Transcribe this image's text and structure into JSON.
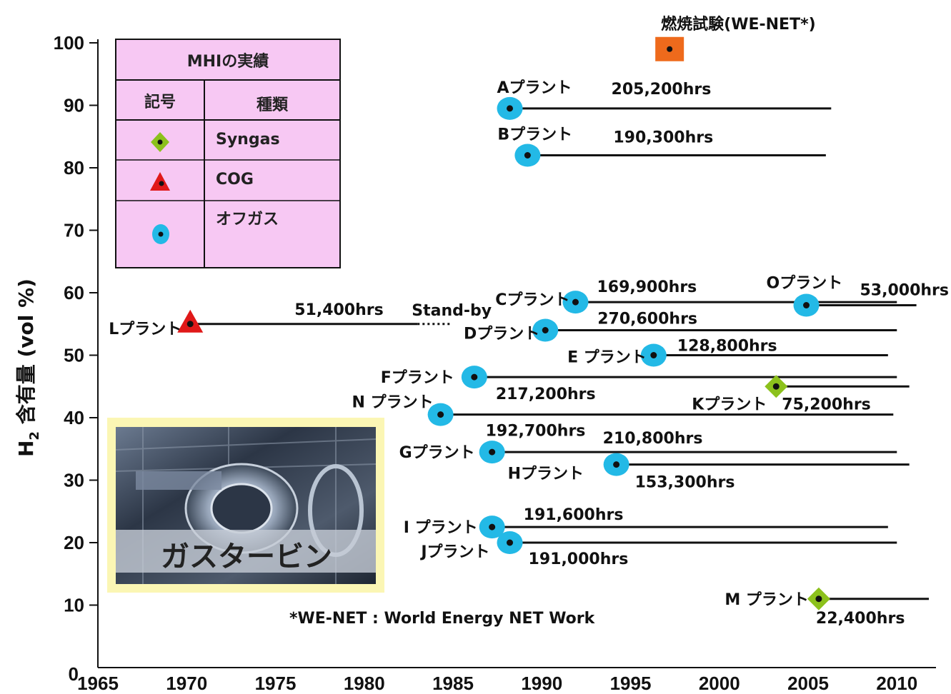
{
  "chart_data": {
    "type": "scatter",
    "ylabel_main": "H",
    "ylabel_sub": "2",
    "ylabel_rest": " 含有量 (vol %)",
    "xlim": [
      1965,
      2012
    ],
    "ylim": [
      0,
      100
    ],
    "x_ticks": [
      "1965",
      "1970",
      "1975",
      "1980",
      "1985",
      "1990",
      "1995",
      "2000",
      "2005",
      "2010"
    ],
    "y_ticks": [
      "0",
      "10",
      "20",
      "30",
      "40",
      "50",
      "60",
      "70",
      "80",
      "90",
      "100"
    ],
    "plants": [
      {
        "name": "Aプラント",
        "hours": "205,200hrs",
        "start": 1988.2,
        "end": 2006.3,
        "h2": 89.5,
        "type": "offgas"
      },
      {
        "name": "Bプラント",
        "hours": "190,300hrs",
        "start": 1989.2,
        "end": 2006.0,
        "h2": 82.0,
        "type": "offgas"
      },
      {
        "name": "Cプラント",
        "hours": "169,900hrs",
        "start": 1991.9,
        "end": 2010.0,
        "h2": 58.5,
        "type": "offgas"
      },
      {
        "name": "Oプラント",
        "hours": "53,000hrs",
        "start": 2004.9,
        "end": 2011.1,
        "h2": 58.0,
        "type": "offgas"
      },
      {
        "name": "Lプラント",
        "hours": "51,400hrs",
        "start": 1970.2,
        "end": 1983.0,
        "h2": 55.0,
        "type": "cog",
        "standby_end": 1984.9
      },
      {
        "name": "Dプラント",
        "hours": "270,600hrs",
        "start": 1990.2,
        "end": 2010.0,
        "h2": 54.0,
        "type": "offgas"
      },
      {
        "name": "E プラント",
        "hours": "128,800hrs",
        "start": 1996.3,
        "end": 2009.5,
        "h2": 50.0,
        "type": "offgas"
      },
      {
        "name": "Fプラント",
        "hours": "217,200hrs",
        "start": 1986.2,
        "end": 2010.0,
        "h2": 46.5,
        "type": "offgas"
      },
      {
        "name": "Kプラント",
        "hours": "75,200hrs",
        "start": 2003.2,
        "end": 2010.7,
        "h2": 45.0,
        "type": "syngas"
      },
      {
        "name": "N プラント",
        "hours": "192,700hrs",
        "start": 1984.3,
        "end": 2009.8,
        "h2": 40.5,
        "type": "offgas"
      },
      {
        "name": "Gプラント",
        "hours": "210,800hrs",
        "start": 1987.2,
        "end": 2010.0,
        "h2": 34.5,
        "type": "offgas"
      },
      {
        "name": "Hプラント",
        "hours": "153,300hrs",
        "start": 1994.2,
        "end": 2010.7,
        "h2": 32.5,
        "type": "offgas"
      },
      {
        "name": "I プラント",
        "hours": "191,600hrs",
        "start": 1987.2,
        "end": 2009.5,
        "h2": 22.5,
        "type": "offgas"
      },
      {
        "name": "Jプラント",
        "hours": "191,000hrs",
        "start": 1988.2,
        "end": 2010.0,
        "h2": 20.0,
        "type": "offgas"
      },
      {
        "name": "M プラント",
        "hours": "22,400hrs",
        "start": 2005.6,
        "end": 2011.8,
        "h2": 11.0,
        "type": "syngas"
      }
    ],
    "combustion_test": {
      "label": "燃焼試験(WE-NET*)",
      "x": 1997.2,
      "h2": 99.0
    },
    "standby_label": "Stand-by",
    "footnote": "*WE-NET : World Energy NET Work",
    "colors": {
      "offgas": "#23b9e6",
      "cog": "#e01818",
      "syngas": "#8cc11c",
      "test": "#ee6a1c"
    }
  },
  "legend": {
    "title": "MHIの実績",
    "col_symbol": "記号",
    "col_type": "種類",
    "rows": [
      {
        "symbol": "syngas-diamond-icon",
        "label": "Syngas"
      },
      {
        "symbol": "cog-triangle-icon",
        "label": "COG"
      },
      {
        "symbol": "offgas-ellipse-icon",
        "label": "オフガス"
      }
    ],
    "bg_color": "#f7c8f3"
  },
  "photo": {
    "caption": "ガスタービン"
  }
}
